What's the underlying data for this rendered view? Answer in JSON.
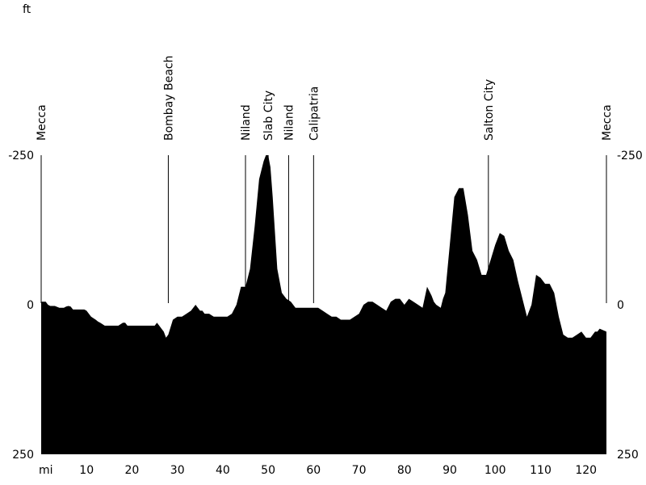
{
  "chart_data": {
    "type": "area",
    "title": "",
    "xlabel": "mi",
    "ylabel": "ft",
    "xlim": [
      0,
      124.5
    ],
    "ylim": [
      -250,
      250
    ],
    "x_ticks": [
      10,
      20,
      30,
      40,
      50,
      60,
      70,
      80,
      90,
      100,
      110,
      120
    ],
    "y_ticks": [
      -250,
      0,
      250
    ],
    "grid": false,
    "fill_color": "#000000",
    "series": [
      {
        "x": [
          0,
          1,
          1.5,
          2,
          3,
          4,
          5,
          5.5,
          6,
          6.5,
          7,
          8,
          9,
          9.5,
          10,
          11,
          12,
          12.5,
          13,
          14,
          15,
          16,
          17,
          18,
          18.5,
          19,
          20,
          21,
          22,
          23,
          24,
          25,
          25.5,
          26,
          26.5,
          27,
          27.5,
          28,
          29,
          30,
          31,
          32,
          33,
          34,
          34.5,
          35,
          35.5,
          36,
          37,
          38,
          39,
          40,
          41,
          42,
          43,
          44,
          45,
          46,
          47,
          48,
          49,
          49.5,
          50,
          50.5,
          51,
          52,
          53,
          54,
          55,
          56,
          57,
          58,
          59,
          60,
          61,
          62,
          63,
          64,
          65,
          66,
          67,
          68,
          69,
          70,
          71,
          72,
          73,
          74,
          75,
          76,
          77,
          78,
          79,
          80,
          81,
          82,
          83,
          84,
          85,
          86,
          86.5,
          87,
          88,
          88.5,
          89,
          90,
          91,
          92,
          93,
          94,
          95,
          96,
          97,
          98,
          99,
          100,
          101,
          102,
          103,
          104,
          105,
          106,
          107,
          108,
          109,
          110,
          111,
          112,
          113,
          114,
          115,
          116,
          117,
          118,
          119,
          120,
          121,
          122,
          122.5,
          123,
          124.5
        ],
        "y": [
          5,
          5,
          0,
          -2,
          -2,
          -5,
          -5,
          -3,
          -2,
          -3,
          -8,
          -8,
          -8,
          -8,
          -10,
          -20,
          -25,
          -28,
          -30,
          -35,
          -35,
          -35,
          -35,
          -30,
          -30,
          -35,
          -35,
          -35,
          -35,
          -35,
          -35,
          -35,
          -30,
          -35,
          -40,
          -45,
          -55,
          -50,
          -25,
          -20,
          -20,
          -15,
          -10,
          0,
          -5,
          -10,
          -10,
          -15,
          -15,
          -20,
          -20,
          -20,
          -20,
          -15,
          0,
          30,
          30,
          60,
          130,
          210,
          240,
          250,
          250,
          230,
          180,
          60,
          20,
          10,
          5,
          -5,
          -5,
          -5,
          -5,
          -5,
          -5,
          -10,
          -15,
          -20,
          -20,
          -25,
          -25,
          -25,
          -20,
          -15,
          0,
          5,
          5,
          0,
          -5,
          -10,
          5,
          10,
          10,
          0,
          10,
          5,
          0,
          -5,
          30,
          15,
          5,
          0,
          -5,
          10,
          20,
          100,
          180,
          195,
          195,
          150,
          90,
          75,
          50,
          50,
          75,
          100,
          120,
          115,
          90,
          75,
          40,
          10,
          -20,
          0,
          50,
          45,
          35,
          35,
          20,
          -20,
          -50,
          -55,
          -55,
          -50,
          -45,
          -55,
          -55,
          -45,
          -45,
          -40,
          -45
        ]
      }
    ],
    "annotations": [
      {
        "x": 0,
        "label": "Mecca"
      },
      {
        "x": 28,
        "label": "Bombay Beach"
      },
      {
        "x": 45,
        "label": "Niland"
      },
      {
        "x": 50,
        "label": "Slab City"
      },
      {
        "x": 54.5,
        "label": "Niland"
      },
      {
        "x": 60,
        "label": "Calipatria"
      },
      {
        "x": 98.5,
        "label": "Salton City"
      },
      {
        "x": 124.5,
        "label": "Mecca"
      }
    ],
    "left_axis_labels": [
      "250",
      "0",
      "-250"
    ],
    "right_axis_labels": [
      "250",
      "0",
      "-250"
    ]
  }
}
